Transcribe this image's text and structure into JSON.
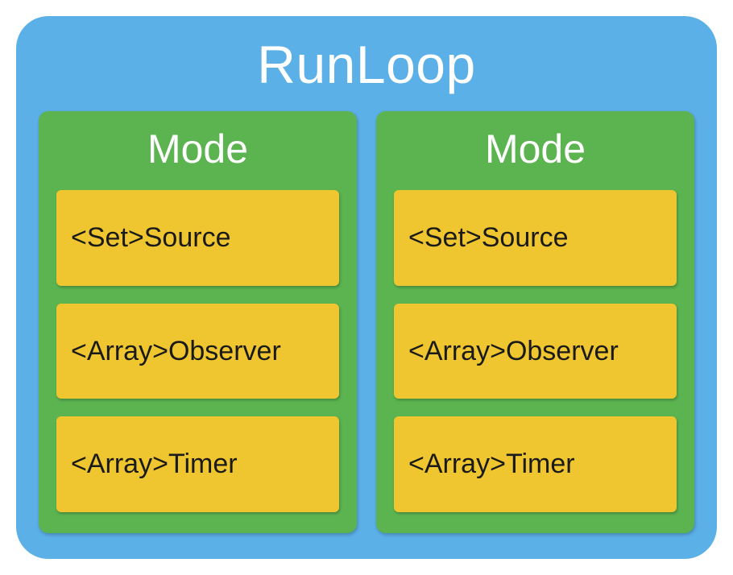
{
  "runloop": {
    "title": "RunLoop",
    "background_color": "#5cb0e8",
    "title_color": "#ffffff",
    "title_fontsize": 66,
    "border_radius": 40
  },
  "mode_style": {
    "background_color": "#5bb450",
    "title_color": "#ffffff",
    "title_fontsize": 50,
    "border_radius": 12
  },
  "item_style": {
    "background_color": "#efc62f",
    "text_color": "#1a1a1a",
    "fontsize": 34,
    "border_radius": 6
  },
  "modes": [
    {
      "title": "Mode",
      "items": [
        {
          "label": "<Set>Source"
        },
        {
          "label": "<Array>Observer"
        },
        {
          "label": "<Array>Timer"
        }
      ]
    },
    {
      "title": "Mode",
      "items": [
        {
          "label": "<Set>Source"
        },
        {
          "label": "<Array>Observer"
        },
        {
          "label": "<Array>Timer"
        }
      ]
    }
  ]
}
